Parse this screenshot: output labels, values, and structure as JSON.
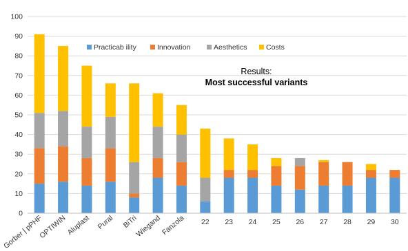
{
  "chart_data": {
    "type": "bar",
    "stacked": true,
    "categories": [
      "Gorber | pPHF",
      "OPTIWIN",
      "Aluplast",
      "Pural",
      "BiTri",
      "Wiegand",
      "Fanzola",
      "22",
      "23",
      "24",
      "25",
      "26",
      "27",
      "28",
      "29",
      "30"
    ],
    "series": [
      {
        "name": "Practicab ility",
        "color": "#5b9bd5",
        "values": [
          15,
          16,
          14,
          16,
          8,
          18,
          14,
          6,
          18,
          18,
          14,
          12,
          14,
          14,
          18,
          18
        ]
      },
      {
        "name": "Innovation",
        "color": "#ed7d31",
        "values": [
          18,
          18,
          14,
          17,
          2,
          10,
          12,
          0,
          4,
          4,
          10,
          12,
          12,
          12,
          4,
          4
        ]
      },
      {
        "name": "Aesthetics",
        "color": "#a5a5a5",
        "values": [
          18,
          18,
          16,
          16,
          16,
          16,
          14,
          12,
          0,
          0,
          0,
          4,
          0,
          0,
          0,
          0
        ]
      },
      {
        "name": "Costs",
        "color": "#ffc000",
        "values": [
          40,
          33,
          31,
          17,
          40,
          17,
          15,
          25,
          16,
          13,
          4,
          0,
          1,
          0,
          3,
          0
        ]
      }
    ],
    "ylim": [
      0,
      100
    ],
    "yticks": [
      0,
      10,
      20,
      30,
      40,
      50,
      60,
      70,
      80,
      90,
      100
    ],
    "grid": true,
    "legend": "top-left",
    "annotation": {
      "line1": "Results:",
      "line2": "Most successful variants"
    }
  }
}
